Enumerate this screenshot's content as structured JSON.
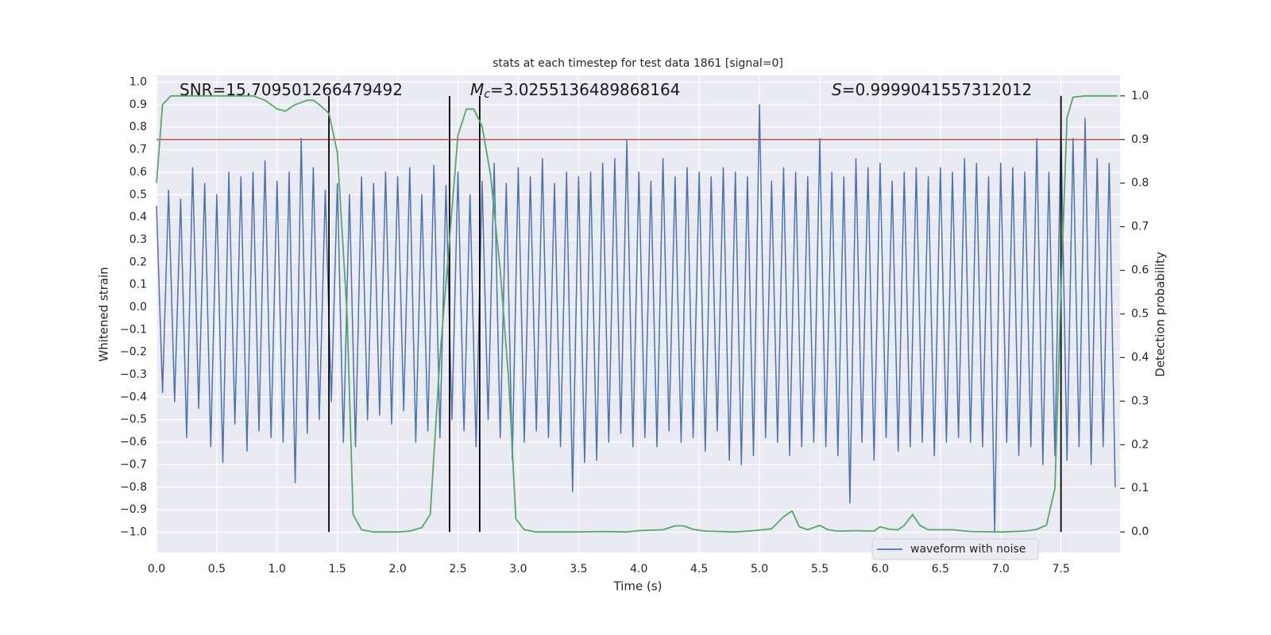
{
  "chart_data": {
    "type": "line",
    "title": "stats at each timestep for test data 1861 [signal=0]",
    "xlabel": "Time (s)",
    "ylabel": "Whitened strain",
    "y2label": "Detection probability",
    "grid": true,
    "legend": "lower right",
    "xlim": [
      0,
      7.99
    ],
    "ylim": [
      -1.09,
      1.03
    ],
    "y2lim": [
      -0.047,
      1.047
    ],
    "xticks": [
      {
        "value": 0,
        "label": "0.0"
      },
      {
        "value": 0.5,
        "label": "0.5"
      },
      {
        "value": 1,
        "label": "1.0"
      },
      {
        "value": 1.5,
        "label": "1.5"
      },
      {
        "value": 2,
        "label": "2.0"
      },
      {
        "value": 2.5,
        "label": "2.5"
      },
      {
        "value": 3,
        "label": "3.0"
      },
      {
        "value": 3.5,
        "label": "3.5"
      },
      {
        "value": 4,
        "label": "4.0"
      },
      {
        "value": 4.5,
        "label": "4.5"
      },
      {
        "value": 5,
        "label": "5.0"
      },
      {
        "value": 5.5,
        "label": "5.5"
      },
      {
        "value": 6,
        "label": "6.0"
      },
      {
        "value": 6.5,
        "label": "6.5"
      },
      {
        "value": 7,
        "label": "7.0"
      },
      {
        "value": 7.5,
        "label": "7.5"
      }
    ],
    "yticks": [
      {
        "value": 1,
        "label": "1.0"
      },
      {
        "value": 0.9,
        "label": "0.9"
      },
      {
        "value": 0.8,
        "label": "0.8"
      },
      {
        "value": 0.7,
        "label": "0.7"
      },
      {
        "value": 0.6,
        "label": "0.6"
      },
      {
        "value": 0.5,
        "label": "0.5"
      },
      {
        "value": 0.4,
        "label": "0.4"
      },
      {
        "value": 0.3,
        "label": "0.3"
      },
      {
        "value": 0.2,
        "label": "0.2"
      },
      {
        "value": 0.1,
        "label": "0.1"
      },
      {
        "value": 0,
        "label": "0.0"
      },
      {
        "value": -0.1,
        "label": "−0.1"
      },
      {
        "value": -0.2,
        "label": "−0.2"
      },
      {
        "value": -0.3,
        "label": "−0.3"
      },
      {
        "value": -0.4,
        "label": "−0.4"
      },
      {
        "value": -0.5,
        "label": "−0.5"
      },
      {
        "value": -0.6,
        "label": "−0.6"
      },
      {
        "value": -0.7,
        "label": "−0.7"
      },
      {
        "value": -0.8,
        "label": "−0.8"
      },
      {
        "value": -0.9,
        "label": "−0.9"
      },
      {
        "value": -1,
        "label": "−1.0"
      }
    ],
    "y2ticks": [
      {
        "value": 0,
        "label": "0.0"
      },
      {
        "value": 0.1,
        "label": "0.1"
      },
      {
        "value": 0.2,
        "label": "0.2"
      },
      {
        "value": 0.3,
        "label": "0.3"
      },
      {
        "value": 0.4,
        "label": "0.4"
      },
      {
        "value": 0.5,
        "label": "0.5"
      },
      {
        "value": 0.6,
        "label": "0.6"
      },
      {
        "value": 0.7,
        "label": "0.7"
      },
      {
        "value": 0.8,
        "label": "0.8"
      },
      {
        "value": 0.9,
        "label": "0.9"
      },
      {
        "value": 1,
        "label": "1.0"
      }
    ],
    "annotations": [
      {
        "text": "SNR=15.709501266479492"
      },
      {
        "symbol": "M",
        "subscript": "c",
        "text": "=3.0255136489868164"
      },
      {
        "symbol": "S",
        "text": "=0.9999041557312012"
      }
    ],
    "threshold": {
      "value": 0.9,
      "axis": "y2",
      "color": "#c44e52"
    },
    "vlines": {
      "x": [
        1.43,
        2.43,
        2.68,
        7.5
      ],
      "color": "#000000"
    },
    "series": [
      {
        "name": "waveform with noise",
        "color": "#4c72b0",
        "x": [
          0,
          0.05,
          0.1,
          0.15,
          0.2,
          0.25,
          0.3,
          0.35,
          0.4,
          0.45,
          0.5,
          0.55,
          0.6,
          0.65,
          0.7,
          0.75,
          0.8,
          0.85,
          0.9,
          0.95,
          1,
          1.05,
          1.1,
          1.15,
          1.2,
          1.25,
          1.3,
          1.35,
          1.4,
          1.45,
          1.5,
          1.55,
          1.6,
          1.65,
          1.7,
          1.75,
          1.8,
          1.85,
          1.9,
          1.95,
          2,
          2.05,
          2.1,
          2.15,
          2.2,
          2.25,
          2.3,
          2.35,
          2.4,
          2.45,
          2.5,
          2.55,
          2.6,
          2.65,
          2.7,
          2.75,
          2.8,
          2.85,
          2.9,
          2.95,
          3,
          3.05,
          3.1,
          3.15,
          3.2,
          3.25,
          3.3,
          3.35,
          3.4,
          3.45,
          3.5,
          3.55,
          3.6,
          3.65,
          3.7,
          3.75,
          3.8,
          3.85,
          3.9,
          3.95,
          4,
          4.05,
          4.1,
          4.15,
          4.2,
          4.25,
          4.3,
          4.35,
          4.4,
          4.45,
          4.5,
          4.55,
          4.6,
          4.65,
          4.7,
          4.75,
          4.8,
          4.85,
          4.9,
          4.95,
          5,
          5.05,
          5.1,
          5.15,
          5.2,
          5.25,
          5.3,
          5.35,
          5.4,
          5.45,
          5.5,
          5.55,
          5.6,
          5.65,
          5.7,
          5.75,
          5.8,
          5.85,
          5.9,
          5.95,
          6,
          6.05,
          6.1,
          6.15,
          6.2,
          6.25,
          6.3,
          6.35,
          6.4,
          6.45,
          6.5,
          6.55,
          6.6,
          6.65,
          6.7,
          6.75,
          6.8,
          6.85,
          6.9,
          6.95,
          7,
          7.05,
          7.1,
          7.15,
          7.2,
          7.25,
          7.3,
          7.35,
          7.4,
          7.45,
          7.5,
          7.55,
          7.6,
          7.65,
          7.7,
          7.75,
          7.8,
          7.85,
          7.9,
          7.95
        ],
        "values": [
          0.45,
          -0.38,
          0.52,
          -0.42,
          0.48,
          -0.58,
          0.62,
          -0.45,
          0.55,
          -0.62,
          0.5,
          -0.69,
          0.6,
          -0.52,
          0.58,
          -0.64,
          0.6,
          -0.55,
          0.65,
          -0.58,
          0.56,
          -0.6,
          0.6,
          -0.78,
          0.75,
          -0.56,
          0.62,
          -0.5,
          0.52,
          -0.42,
          0.55,
          -0.6,
          0.5,
          -0.62,
          0.58,
          -0.5,
          0.55,
          -0.48,
          0.6,
          -0.52,
          0.58,
          -0.46,
          0.62,
          -0.6,
          0.5,
          -0.55,
          0.63,
          -0.58,
          0.54,
          -0.5,
          0.6,
          -0.55,
          0.5,
          -0.62,
          0.56,
          -0.5,
          0.64,
          -0.58,
          0.55,
          -0.68,
          0.62,
          -0.6,
          0.58,
          -0.55,
          0.66,
          -0.58,
          0.55,
          -0.62,
          0.6,
          -0.82,
          0.58,
          -0.69,
          0.6,
          -0.68,
          0.64,
          -0.6,
          0.66,
          -0.56,
          0.74,
          -0.62,
          0.6,
          -0.58,
          0.56,
          -0.62,
          0.66,
          -0.55,
          0.58,
          -0.6,
          0.62,
          -0.58,
          0.6,
          -0.64,
          0.58,
          -0.55,
          0.62,
          -0.68,
          0.6,
          -0.7,
          0.58,
          -0.66,
          0.9,
          -0.58,
          0.56,
          -0.6,
          0.62,
          -0.66,
          0.6,
          -0.62,
          0.58,
          -0.6,
          0.75,
          -0.62,
          0.6,
          -0.66,
          0.58,
          -0.87,
          0.66,
          -0.6,
          0.62,
          -0.68,
          0.64,
          -0.58,
          0.56,
          -0.64,
          0.6,
          -0.62,
          0.62,
          -0.6,
          0.58,
          -0.66,
          0.62,
          -0.6,
          0.6,
          -0.58,
          0.66,
          -0.6,
          0.64,
          -0.62,
          0.58,
          -1.0,
          0.64,
          -0.6,
          0.62,
          -0.66,
          0.6,
          -0.62,
          0.75,
          -0.7,
          0.6,
          -0.66,
          0.8,
          -0.68,
          0.75,
          -0.62,
          0.84,
          -0.7,
          0.66,
          -0.62,
          0.64,
          -0.8
        ]
      },
      {
        "color": "#55a868",
        "axis": "y2",
        "x": [
          0,
          0.05,
          0.12,
          0.3,
          0.5,
          0.8,
          0.9,
          1,
          1.07,
          1.15,
          1.25,
          1.3,
          1.35,
          1.43,
          1.5,
          1.58,
          1.63,
          1.7,
          1.8,
          2,
          2.1,
          2.2,
          2.27,
          2.35,
          2.4,
          2.5,
          2.57,
          2.63,
          2.7,
          2.77,
          2.85,
          2.92,
          2.98,
          3.05,
          3.15,
          3.5,
          3.7,
          3.9,
          4,
          4.2,
          4.3,
          4.37,
          4.45,
          4.55,
          4.8,
          4.95,
          5.1,
          5.2,
          5.27,
          5.33,
          5.4,
          5.5,
          5.57,
          5.65,
          5.8,
          5.95,
          6,
          6.08,
          6.15,
          6.2,
          6.27,
          6.33,
          6.4,
          6.6,
          6.75,
          7,
          7.2,
          7.3,
          7.38,
          7.45,
          7.5,
          7.55,
          7.6,
          7.7,
          7.97
        ],
        "values": [
          0.8,
          0.98,
          1.0,
          1.0,
          1.0,
          1.0,
          0.99,
          0.97,
          0.965,
          0.98,
          0.99,
          0.99,
          0.98,
          0.96,
          0.87,
          0.5,
          0.04,
          0.005,
          0.0,
          0.0,
          0.002,
          0.01,
          0.04,
          0.4,
          0.57,
          0.91,
          0.97,
          0.97,
          0.93,
          0.82,
          0.6,
          0.35,
          0.03,
          0.005,
          0.0,
          0.0,
          0.001,
          0.0,
          0.003,
          0.005,
          0.014,
          0.014,
          0.006,
          0.002,
          0.0,
          0.003,
          0.007,
          0.035,
          0.048,
          0.012,
          0.005,
          0.015,
          0.005,
          0.002,
          0.003,
          0.002,
          0.012,
          0.006,
          0.005,
          0.015,
          0.04,
          0.015,
          0.005,
          0.005,
          0.001,
          0.0,
          0.002,
          0.006,
          0.016,
          0.1,
          0.55,
          0.95,
          0.997,
          1.0,
          1.0
        ]
      }
    ]
  }
}
